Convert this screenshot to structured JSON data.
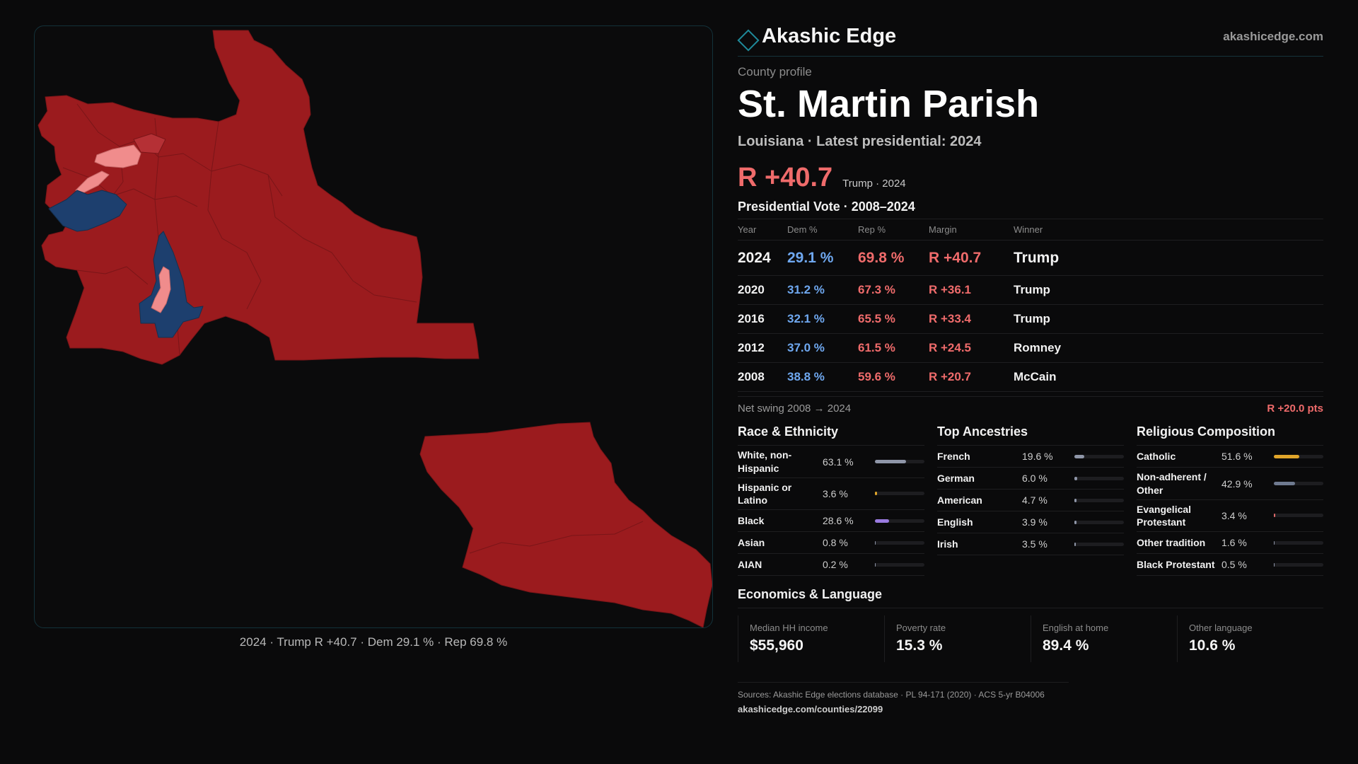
{
  "brand": {
    "name": "Akashic Edge",
    "url": "akashicedge.com",
    "logo_icon": "diamond-outline-icon",
    "accent": "#1f8a9a"
  },
  "profile": {
    "kicker": "County profile",
    "title": "St. Martin Parish",
    "subtitle": "Louisiana · Latest presidential: 2024",
    "margin": "R +40.7",
    "margin_note": "Trump · 2024"
  },
  "map": {
    "caption": "2024 · Trump R +40.7 · Dem 29.1 % · Rep 69.8 %",
    "colors": {
      "strong_rep": "#9b1b1e",
      "lean_rep": "#f08c8c",
      "dem": "#1d3f6e"
    }
  },
  "votes": {
    "title": "Presidential Vote · 2008–2024",
    "headers": [
      "Year",
      "Dem %",
      "Rep %",
      "Margin",
      "Winner"
    ],
    "rows": [
      {
        "year": "2024",
        "dem": "29.1 %",
        "rep": "69.8 %",
        "margin": "R +40.7",
        "winner": "Trump"
      },
      {
        "year": "2020",
        "dem": "31.2 %",
        "rep": "67.3 %",
        "margin": "R +36.1",
        "winner": "Trump"
      },
      {
        "year": "2016",
        "dem": "32.1 %",
        "rep": "65.5 %",
        "margin": "R +33.4",
        "winner": "Trump"
      },
      {
        "year": "2012",
        "dem": "37.0 %",
        "rep": "61.5 %",
        "margin": "R +24.5",
        "winner": "Romney"
      },
      {
        "year": "2008",
        "dem": "38.8 %",
        "rep": "59.6 %",
        "margin": "R +20.7",
        "winner": "McCain"
      }
    ],
    "swing_label": "Net swing 2008 → 2024",
    "swing_value": "R +20.0 pts"
  },
  "race": {
    "title": "Race & Ethnicity",
    "items": [
      {
        "label": "White, non-Hispanic",
        "value": "63.1 %",
        "pct": 63.1,
        "color": "#8f96a8"
      },
      {
        "label": "Hispanic or Latino",
        "value": "3.6 %",
        "pct": 3.6,
        "color": "#e0a52a"
      },
      {
        "label": "Black",
        "value": "28.6 %",
        "pct": 28.6,
        "color": "#9a7be0"
      },
      {
        "label": "Asian",
        "value": "0.8 %",
        "pct": 0.8,
        "color": "#8f96a8"
      },
      {
        "label": "AIAN",
        "value": "0.2 %",
        "pct": 0.2,
        "color": "#8f96a8"
      }
    ]
  },
  "ancestry": {
    "title": "Top Ancestries",
    "items": [
      {
        "label": "French",
        "value": "19.6 %",
        "pct": 19.6,
        "color": "#8f96a8"
      },
      {
        "label": "German",
        "value": "6.0 %",
        "pct": 6.0,
        "color": "#8f96a8"
      },
      {
        "label": "American",
        "value": "4.7 %",
        "pct": 4.7,
        "color": "#8f96a8"
      },
      {
        "label": "English",
        "value": "3.9 %",
        "pct": 3.9,
        "color": "#8f96a8"
      },
      {
        "label": "Irish",
        "value": "3.5 %",
        "pct": 3.5,
        "color": "#8f96a8"
      }
    ]
  },
  "religion": {
    "title": "Religious Composition",
    "items": [
      {
        "label": "Catholic",
        "value": "51.6 %",
        "pct": 51.6,
        "color": "#e0a52a"
      },
      {
        "label": "Non-adherent / Other",
        "value": "42.9 %",
        "pct": 42.9,
        "color": "#6f7a90"
      },
      {
        "label": "Evangelical Protestant",
        "value": "3.4 %",
        "pct": 3.4,
        "color": "#e06a6a"
      },
      {
        "label": "Other tradition",
        "value": "1.6 %",
        "pct": 1.6,
        "color": "#8f96a8"
      },
      {
        "label": "Black Protestant",
        "value": "0.5 %",
        "pct": 0.5,
        "color": "#8f96a8"
      }
    ]
  },
  "economics": {
    "title": "Economics & Language",
    "items": [
      {
        "label": "Median HH income",
        "value": "$55,960"
      },
      {
        "label": "Poverty rate",
        "value": "15.3 %"
      },
      {
        "label": "English at home",
        "value": "89.4 %"
      },
      {
        "label": "Other language",
        "value": "10.6 %"
      }
    ]
  },
  "footer": {
    "sources": "Sources: Akashic Edge elections database · PL 94-171 (2020) · ACS 5-yr B04006",
    "url": "akashicedge.com/counties/22099"
  }
}
